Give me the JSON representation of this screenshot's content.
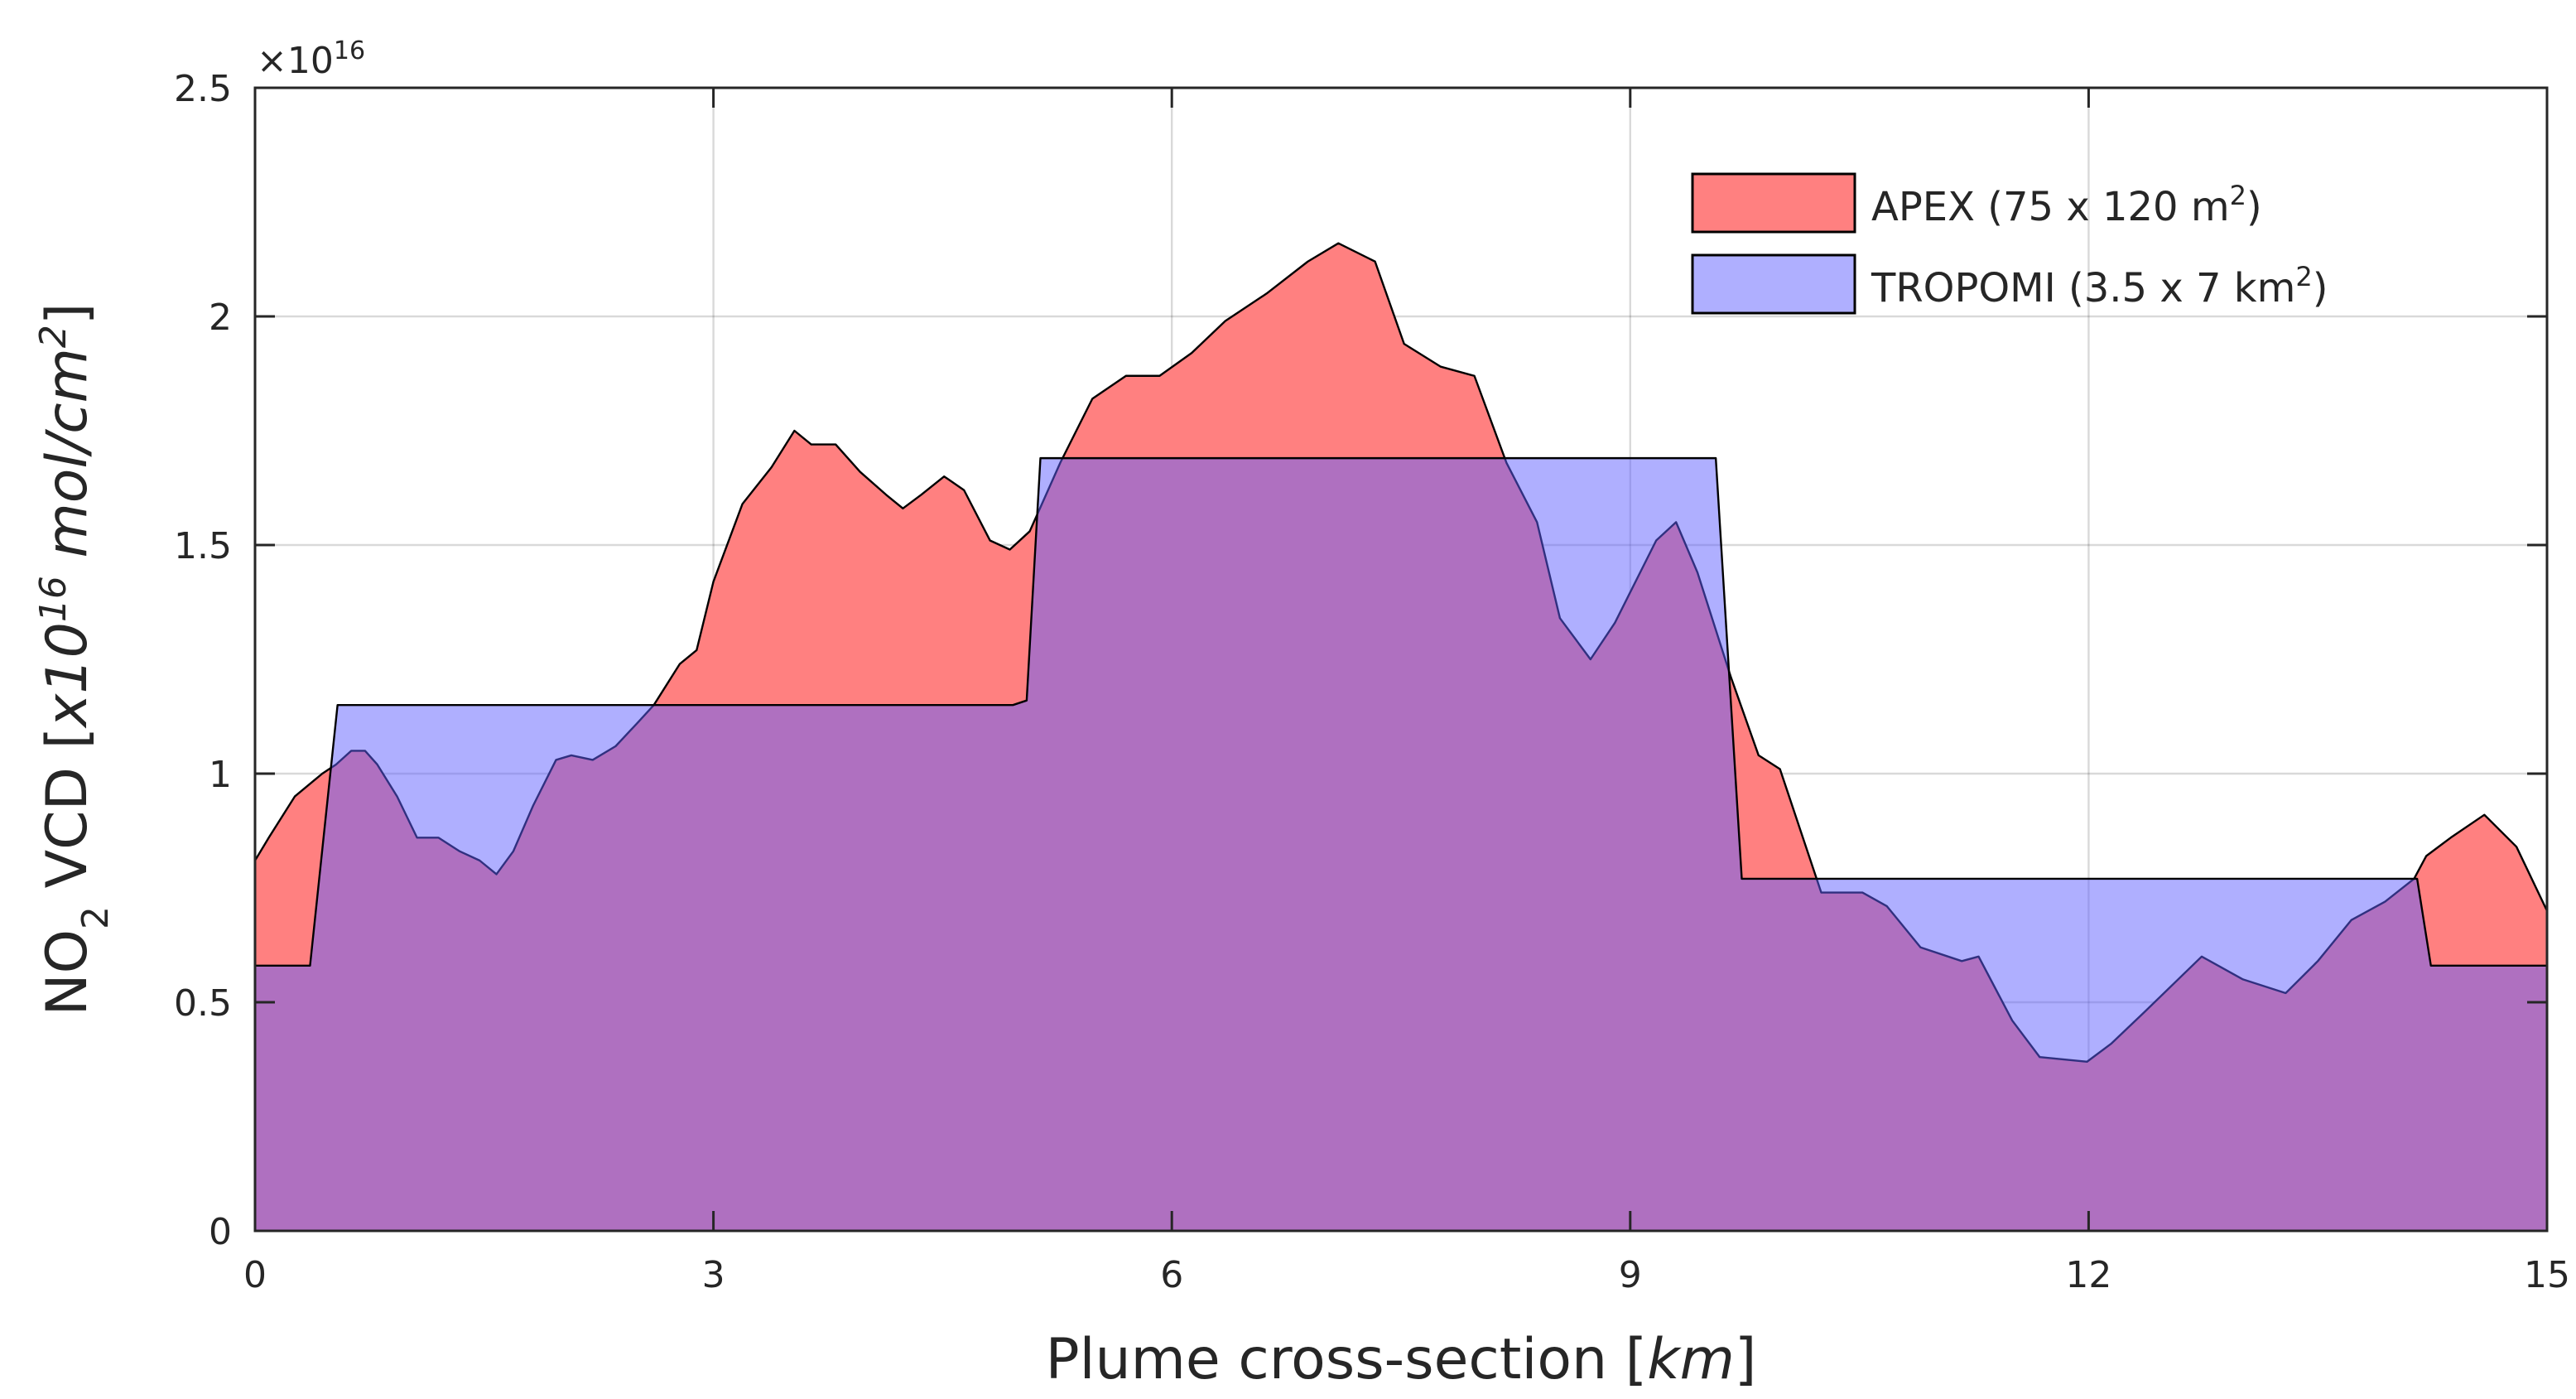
{
  "chart_data": {
    "type": "area",
    "y_multiplier": {
      "base": "×10",
      "exponent": "16"
    },
    "xlabel": [
      "Plume cross-section [",
      "km",
      "]"
    ],
    "ylabel": [
      "NO",
      "2",
      " VCD [",
      "x10",
      "16",
      " mol/cm",
      "2",
      "]"
    ],
    "xlim": [
      0,
      15
    ],
    "xticks": [
      0,
      3,
      6,
      9,
      12,
      15
    ],
    "ylim": [
      0,
      2.5
    ],
    "yticks": [
      0,
      0.5,
      1,
      1.5,
      2,
      2.5
    ],
    "grid": true,
    "legend": "upper right",
    "series": [
      {
        "name": [
          "APEX (75 x 120 m",
          "2",
          ")"
        ],
        "color": "#ff8080",
        "opacity": 1,
        "x": [
          0,
          0.09,
          0.26,
          0.44,
          0.53,
          0.63,
          0.72,
          0.8,
          0.93,
          1.06,
          1.2,
          1.34,
          1.47,
          1.58,
          1.69,
          1.82,
          1.97,
          2.07,
          2.21,
          2.36,
          2.5,
          2.61,
          2.78,
          2.89,
          3.0,
          3.19,
          3.38,
          3.53,
          3.64,
          3.8,
          3.96,
          4.13,
          4.24,
          4.36,
          4.51,
          4.64,
          4.81,
          4.94,
          5.07,
          5.27,
          5.48,
          5.7,
          5.92,
          6.13,
          6.35,
          6.62,
          6.89,
          7.09,
          7.33,
          7.52,
          7.76,
          7.98,
          8.19,
          8.39,
          8.54,
          8.74,
          8.9,
          9.17,
          9.3,
          9.44,
          9.66,
          9.84,
          9.98,
          10.25,
          10.52,
          10.68,
          10.9,
          11.17,
          11.28,
          11.5,
          11.68,
          11.99,
          12.15,
          12.37,
          12.74,
          13.01,
          13.29,
          13.5,
          13.72,
          13.94,
          14.13,
          14.21,
          14.37,
          14.59,
          14.8,
          15.0
        ],
        "values": [
          0.81,
          0.86,
          0.95,
          1.0,
          1.02,
          1.05,
          1.05,
          1.02,
          0.95,
          0.86,
          0.86,
          0.83,
          0.81,
          0.78,
          0.83,
          0.93,
          1.03,
          1.04,
          1.03,
          1.06,
          1.11,
          1.15,
          1.24,
          1.27,
          1.42,
          1.59,
          1.67,
          1.75,
          1.72,
          1.72,
          1.66,
          1.61,
          1.58,
          1.61,
          1.65,
          1.62,
          1.51,
          1.49,
          1.53,
          1.68,
          1.82,
          1.87,
          1.87,
          1.92,
          1.99,
          2.05,
          2.12,
          2.16,
          2.12,
          1.94,
          1.89,
          1.87,
          1.68,
          1.55,
          1.34,
          1.25,
          1.33,
          1.51,
          1.55,
          1.44,
          1.21,
          1.04,
          1.01,
          0.74,
          0.74,
          0.71,
          0.62,
          0.59,
          0.6,
          0.46,
          0.38,
          0.37,
          0.41,
          0.48,
          0.6,
          0.55,
          0.52,
          0.59,
          0.68,
          0.72,
          0.77,
          0.82,
          0.86,
          0.91,
          0.84,
          0.7
        ]
      },
      {
        "name": [
          "TROPOMI (3.5 x 7 km",
          "2",
          ")"
        ],
        "color": "#6060ff",
        "opacity": 0.5,
        "x": [
          0,
          0.36,
          0.54,
          4.96,
          5.05,
          5.14,
          9.56,
          9.73,
          14.15,
          14.24,
          15
        ],
        "values": [
          0.58,
          0.58,
          1.15,
          1.15,
          1.16,
          1.69,
          1.69,
          0.77,
          0.77,
          0.58,
          0.58
        ]
      }
    ]
  }
}
